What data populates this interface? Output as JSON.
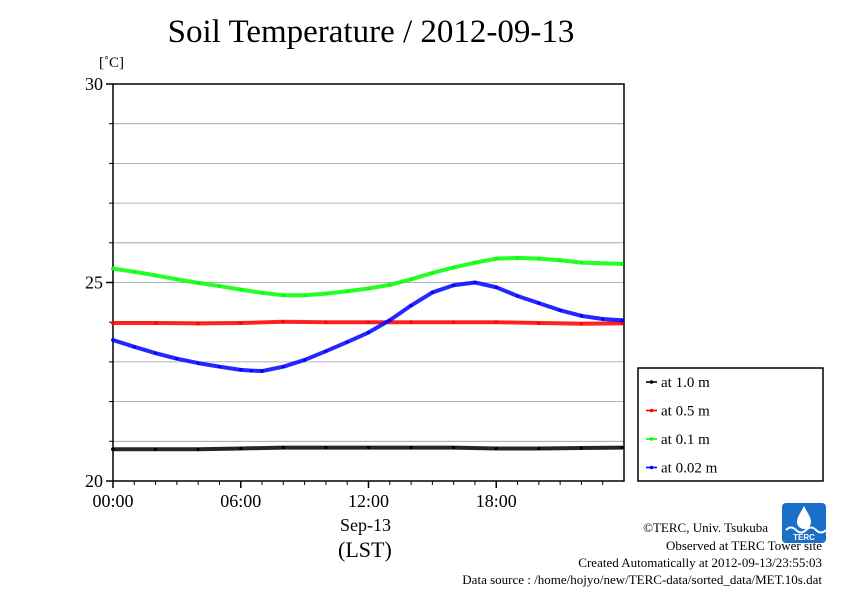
{
  "chart_data": {
    "type": "line",
    "title": "Soil Temperature / 2012-09-13",
    "ylabel": "[˚C]",
    "ylim": [
      20,
      30
    ],
    "xlim": [
      0,
      24
    ],
    "yticks": [
      "20",
      "25",
      "30"
    ],
    "xticks": [
      "00:00",
      "06:00",
      "12:00",
      "18:00"
    ],
    "xlabel_date": "Sep-13",
    "xlabel_unit": "(LST)",
    "grid": true,
    "legend_position": "right",
    "series": [
      {
        "name": "at 1.0 m",
        "color": "#000000",
        "x": [
          0,
          2,
          4,
          6,
          8,
          10,
          12,
          14,
          16,
          18,
          20,
          22,
          23.9
        ],
        "y": [
          20.8,
          20.8,
          20.8,
          20.82,
          20.84,
          20.84,
          20.84,
          20.84,
          20.84,
          20.82,
          20.82,
          20.83,
          20.84
        ]
      },
      {
        "name": "at 0.5 m",
        "color": "#ff0000",
        "x": [
          0,
          2,
          4,
          6,
          8,
          10,
          12,
          14,
          16,
          18,
          20,
          22,
          23.9
        ],
        "y": [
          23.98,
          23.98,
          23.97,
          23.98,
          24.01,
          24.0,
          24.0,
          24.0,
          24.0,
          24.0,
          23.98,
          23.96,
          23.97
        ]
      },
      {
        "name": "at 0.1 m",
        "color": "#00ff00",
        "x": [
          0,
          1,
          2,
          3,
          4,
          5,
          6,
          7,
          8,
          9,
          10,
          11,
          12,
          13,
          14,
          15,
          16,
          17,
          18,
          19,
          20,
          21,
          22,
          23.9
        ],
        "y": [
          25.35,
          25.27,
          25.18,
          25.08,
          24.99,
          24.91,
          24.82,
          24.74,
          24.68,
          24.68,
          24.72,
          24.78,
          24.85,
          24.94,
          25.08,
          25.24,
          25.38,
          25.5,
          25.6,
          25.62,
          25.6,
          25.56,
          25.5,
          25.47
        ]
      },
      {
        "name": "at 0.02 m",
        "color": "#0000ff",
        "x": [
          0,
          1,
          2,
          3,
          4,
          5,
          6,
          6.5,
          7,
          8,
          9,
          10,
          11,
          12,
          13,
          14,
          15,
          16,
          17,
          18,
          19,
          20,
          21,
          22,
          23,
          23.9
        ],
        "y": [
          23.55,
          23.38,
          23.22,
          23.08,
          22.97,
          22.88,
          22.8,
          22.78,
          22.77,
          22.88,
          23.05,
          23.27,
          23.5,
          23.74,
          24.05,
          24.42,
          24.75,
          24.93,
          25.0,
          24.88,
          24.66,
          24.48,
          24.3,
          24.16,
          24.08,
          24.05
        ]
      }
    ]
  },
  "credits": {
    "copyright": "©TERC, Univ. Tsukuba",
    "site": "Observed at TERC Tower site",
    "created": "Created Automatically at 2012-09-13/23:55:03",
    "source": "Data source : /home/hojyo/new/TERC-data/sorted_data/MET.10s.dat"
  },
  "logo": {
    "text": "TERC",
    "color": "#1a6fc9"
  }
}
